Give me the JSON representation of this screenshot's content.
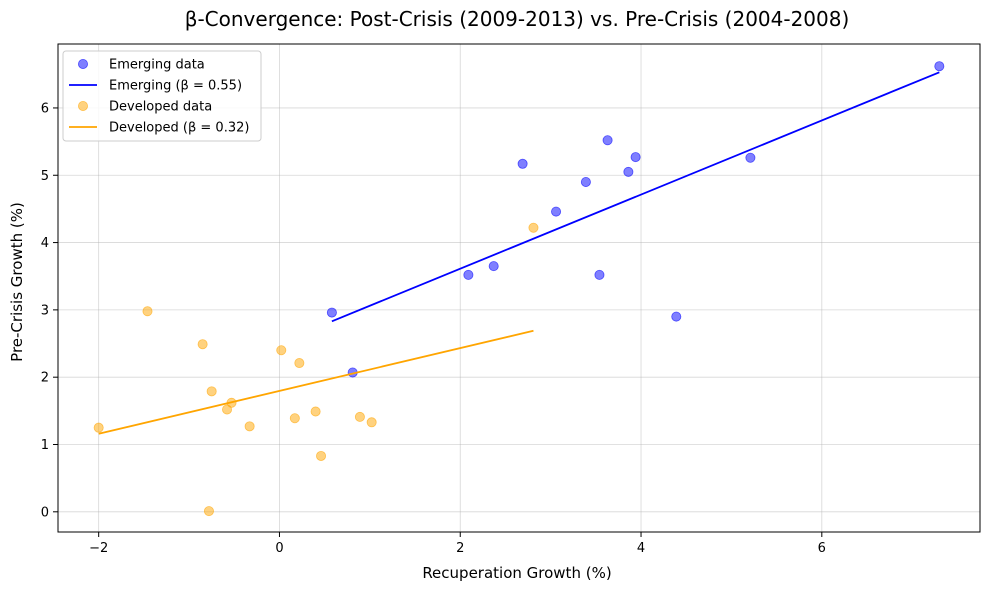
{
  "chart_data": {
    "type": "scatter",
    "title": "β-Convergence: Post-Crisis (2009-2013) vs. Pre-Crisis (2004-2008)",
    "xlabel": "Recuperation Growth (%)",
    "ylabel": "Pre-Crisis Growth (%)",
    "xlim": [
      -2.45,
      7.75
    ],
    "ylim": [
      -0.3,
      6.95
    ],
    "xticks": [
      -2,
      0,
      2,
      4,
      6
    ],
    "yticks": [
      0,
      1,
      2,
      3,
      4,
      5,
      6
    ],
    "grid": true,
    "legend_position": "top-left",
    "series": [
      {
        "name": "Emerging data",
        "kind": "scatter",
        "color": "#0000ff",
        "points": [
          [
            0.58,
            2.96
          ],
          [
            0.81,
            2.07
          ],
          [
            2.09,
            3.52
          ],
          [
            2.37,
            3.65
          ],
          [
            2.69,
            5.17
          ],
          [
            3.06,
            4.46
          ],
          [
            3.39,
            4.9
          ],
          [
            3.54,
            3.52
          ],
          [
            3.63,
            5.52
          ],
          [
            3.86,
            5.05
          ],
          [
            3.94,
            5.27
          ],
          [
            4.39,
            2.9
          ],
          [
            5.21,
            5.26
          ],
          [
            7.3,
            6.62
          ]
        ]
      },
      {
        "name": "Emerging (β = 0.55)",
        "kind": "line",
        "color": "#0000ff",
        "points": [
          [
            0.58,
            2.83
          ],
          [
            7.3,
            6.53
          ]
        ]
      },
      {
        "name": "Developed data",
        "kind": "scatter",
        "color": "#ffa500",
        "points": [
          [
            -2.0,
            1.25
          ],
          [
            -1.46,
            2.98
          ],
          [
            -0.85,
            2.49
          ],
          [
            -0.78,
            0.01
          ],
          [
            -0.75,
            1.79
          ],
          [
            -0.58,
            1.52
          ],
          [
            -0.53,
            1.62
          ],
          [
            -0.33,
            1.27
          ],
          [
            0.02,
            2.4
          ],
          [
            0.17,
            1.39
          ],
          [
            0.22,
            2.21
          ],
          [
            0.4,
            1.49
          ],
          [
            0.46,
            0.83
          ],
          [
            0.89,
            1.41
          ],
          [
            1.02,
            1.33
          ],
          [
            2.81,
            4.22
          ]
        ]
      },
      {
        "name": "Developed (β = 0.32)",
        "kind": "line",
        "color": "#ffa500",
        "points": [
          [
            -2.0,
            1.16
          ],
          [
            2.81,
            2.69
          ]
        ]
      }
    ]
  }
}
